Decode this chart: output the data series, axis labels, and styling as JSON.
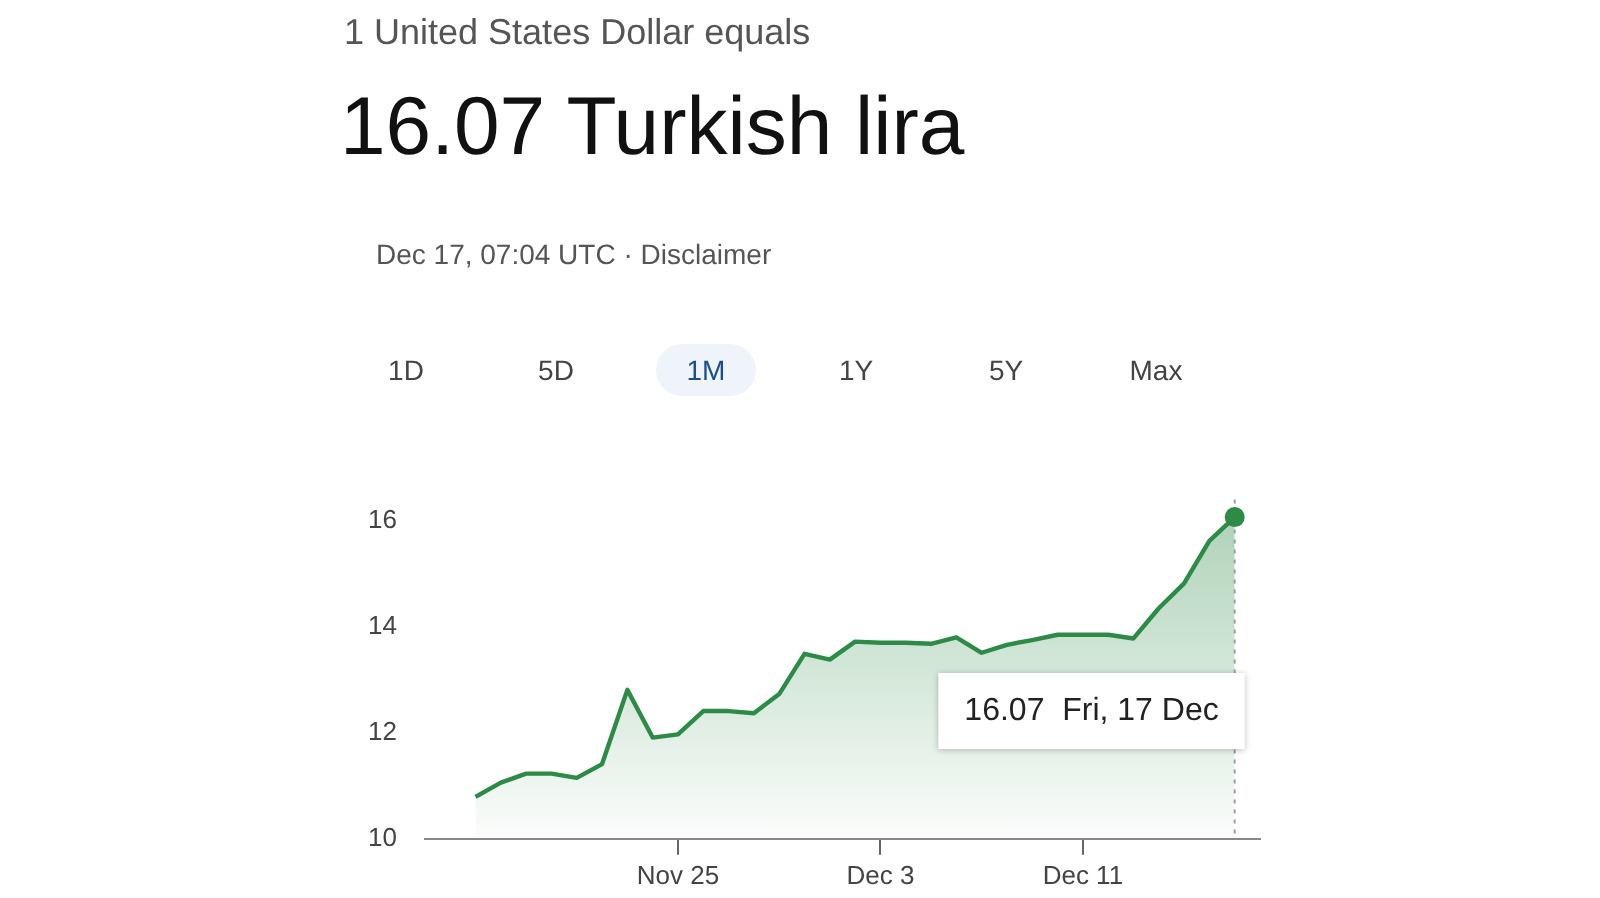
{
  "chart_data": {
    "type": "area",
    "subtitle": "1 United States Dollar equals",
    "title": "16.07 Turkish lira",
    "annotations": [
      "Dec 17, 07:04 UTC · Disclaimer",
      "1D",
      "5D",
      "1M",
      "1Y",
      "5Y",
      "Max",
      "16.07  Fri, 17 Dec"
    ],
    "x": [
      "--11-17",
      "--11-18",
      "--11-19",
      "--11-20",
      "--11-21",
      "--11-22",
      "--11-23",
      "--11-24",
      "--11-25",
      "--11-26",
      "--11-27",
      "--11-28",
      "--11-29",
      "--11-30",
      "--12-01",
      "--12-02",
      "--12-03",
      "--12-04",
      "--12-05",
      "--12-06",
      "--12-07",
      "--12-08",
      "--12-09",
      "--12-10",
      "--12-11",
      "--12-12",
      "--12-13",
      "--12-14",
      "--12-15",
      "--12-16",
      "--12-17"
    ],
    "series": [
      {
        "color": "#2e8b47",
        "values": [
          10.79,
          11.06,
          11.23,
          11.23,
          11.15,
          11.41,
          12.81,
          11.91,
          11.97,
          12.41,
          12.41,
          12.37,
          12.73,
          13.49,
          13.38,
          13.72,
          13.7,
          13.7,
          13.68,
          13.8,
          13.51,
          13.66,
          13.75,
          13.85,
          13.85,
          13.85,
          13.78,
          14.35,
          14.82,
          15.62,
          16.07
        ]
      }
    ],
    "xlim": [
      "--11-15",
      "--12-18"
    ],
    "xticks": [
      {
        "value": "--11-25",
        "label": "Nov 25"
      },
      {
        "value": "--12-03",
        "label": "Dec 3"
      },
      {
        "value": "--12-11",
        "label": "Dec 11"
      }
    ],
    "ylim": [
      10,
      16.4
    ],
    "yticks": [
      10,
      12,
      14,
      16
    ],
    "ref_lines": [
      {
        "axis": "x",
        "value": "--12-17",
        "color": "#9e9e9e",
        "line_style": "dotted"
      }
    ],
    "grid": false,
    "legend": false,
    "marker": "none",
    "line_style": "solid"
  }
}
